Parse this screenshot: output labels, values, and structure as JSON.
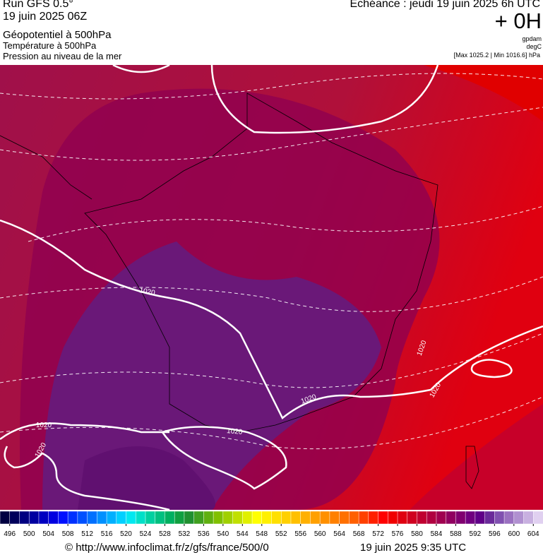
{
  "header": {
    "run": "Run GFS 0.5°",
    "run_date": "19 juin 2025 06Z",
    "field1": "Géopotentiel à 500hPa",
    "field2": "Température à 500hPa",
    "field3": "Pression au niveau de la mer",
    "forecast": "Echéance : jeudi 19 juin 2025 6h UTC",
    "lead": "+ 0H",
    "unit1": "gpdam",
    "unit2": "degC",
    "pressure_range": "[Max 1025.2 | Min 1016.6] hPa"
  },
  "map": {
    "isobar_labels": [
      "1020",
      "1020",
      "1020",
      "1020",
      "1020",
      "1020",
      "1020"
    ]
  },
  "colorbar": {
    "ticks": [
      496,
      500,
      504,
      508,
      512,
      516,
      520,
      524,
      528,
      532,
      536,
      540,
      544,
      548,
      552,
      556,
      560,
      564,
      568,
      572,
      576,
      580,
      584,
      588,
      592,
      596,
      600,
      604
    ],
    "colors": [
      "#000040",
      "#00005a",
      "#000080",
      "#0000a0",
      "#0000c0",
      "#0000e0",
      "#0010ff",
      "#0030ff",
      "#0050ff",
      "#0070ff",
      "#0090ff",
      "#00b0ff",
      "#00d0ff",
      "#00e8f0",
      "#00e0c8",
      "#00d0a0",
      "#00c080",
      "#00b060",
      "#10a040",
      "#209030",
      "#40a020",
      "#60b010",
      "#80c000",
      "#a0d000",
      "#c0e000",
      "#e0f000",
      "#ffff00",
      "#fff000",
      "#ffe000",
      "#ffd000",
      "#ffc000",
      "#ffb000",
      "#ffa000",
      "#ff9000",
      "#ff8000",
      "#ff7000",
      "#ff6000",
      "#ff4000",
      "#ff2000",
      "#ff0000",
      "#f00000",
      "#e00010",
      "#d00020",
      "#c00030",
      "#b00040",
      "#a00050",
      "#900060",
      "#800070",
      "#700080",
      "#600088",
      "#6a2a9a",
      "#8050b0",
      "#9a70c0",
      "#b090d0",
      "#c8b0e0",
      "#e0d0f0"
    ]
  },
  "footer": {
    "source": "© http://www.infoclimat.fr/z/gfs/france/500/0",
    "generated": "19 juin 2025  9:35 UTC"
  }
}
